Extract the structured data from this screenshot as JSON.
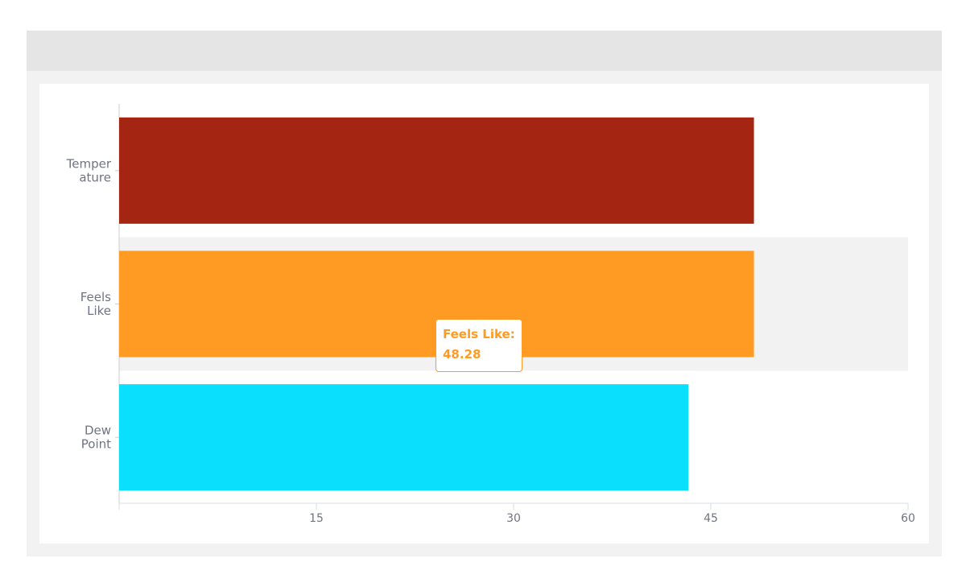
{
  "chart_data": {
    "type": "bar",
    "orientation": "horizontal",
    "categories": [
      [
        "Temper",
        "ature"
      ],
      [
        "Feels",
        "Like"
      ],
      [
        "Dew",
        "Point"
      ]
    ],
    "values": [
      48.28,
      48.28,
      43.3
    ],
    "colors": [
      "#a32512",
      "#ff9a22",
      "#0ae0fd"
    ],
    "xlim": [
      0,
      60
    ],
    "xticks": [
      15,
      30,
      45,
      60
    ],
    "highlighted_index": 1,
    "highlight_color": "#f2f2f2",
    "tooltip": {
      "label": "Feels Like:",
      "value": "48.28",
      "color": "#ff9a22"
    }
  }
}
